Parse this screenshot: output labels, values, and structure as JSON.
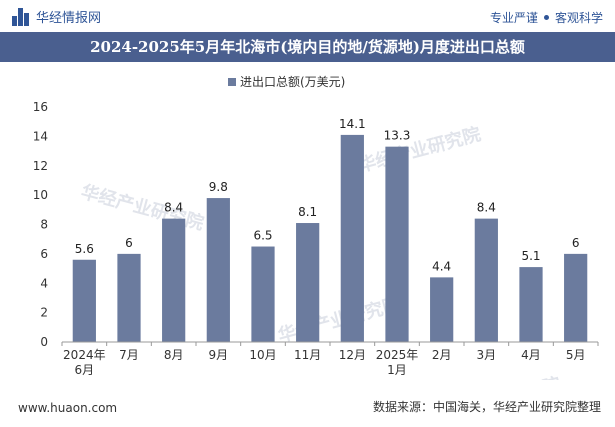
{
  "header": {
    "brand": "华经情报网",
    "tagline_a": "专业严谨",
    "tagline_b": "客观科学"
  },
  "footer": {
    "url": "www.huaon.com",
    "source": "数据来源：中国海关，华经产业研究院整理"
  },
  "watermarks": [
    "华经产业研究院",
    "www.huaon.com"
  ],
  "colors": {
    "bar": "#6b7b9e",
    "title_bg": "#4a5f8f",
    "brand": "#2f5597"
  },
  "chart_data": {
    "type": "bar",
    "title": "2024-2025年5月年北海市(境内目的地/货源地)月度进出口总额",
    "legend": "进出口总额(万美元)",
    "legend_position": "top",
    "categories": [
      [
        "2024年",
        "6月"
      ],
      [
        "7月"
      ],
      [
        "8月"
      ],
      [
        "9月"
      ],
      [
        "10月"
      ],
      [
        "11月"
      ],
      [
        "12月"
      ],
      [
        "2025年",
        "1月"
      ],
      [
        "2月"
      ],
      [
        "3月"
      ],
      [
        "4月"
      ],
      [
        "5月"
      ]
    ],
    "series": [
      {
        "name": "进出口总额(万美元)",
        "values": [
          5.6,
          6,
          8.4,
          9.8,
          6.5,
          8.1,
          14.1,
          13.3,
          4.4,
          8.4,
          5.1,
          6
        ]
      }
    ],
    "data_labels": [
      "5.6",
      "6",
      "8.4",
      "9.8",
      "6.5",
      "8.1",
      "14.1",
      "13.3",
      "4.4",
      "8.4",
      "5.1",
      "6"
    ],
    "ylim": [
      0,
      16
    ],
    "yticks": [
      0,
      2,
      4,
      6,
      8,
      10,
      12,
      14,
      16
    ],
    "grid": false
  }
}
